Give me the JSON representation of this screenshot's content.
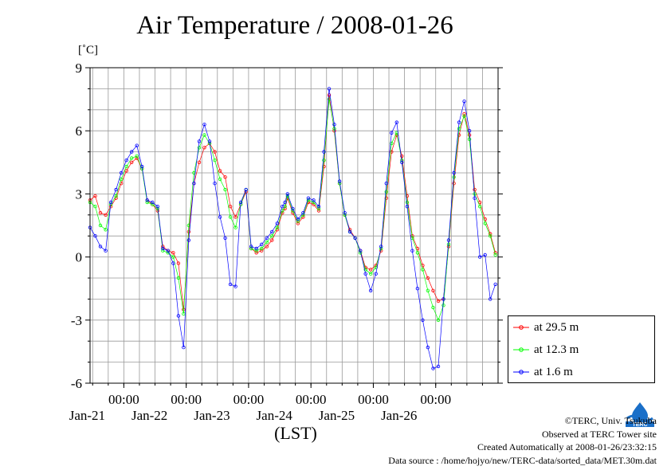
{
  "header": {
    "title": "Air Temperature / 2008-01-26",
    "unit": "[˚C]"
  },
  "footer": {
    "copyright": "©TERC, Univ. Tsukuba",
    "site": "Observed at TERC Tower site",
    "created": "Created Automatically at 2008-01-26/23:32:15",
    "source": "Data source : /home/hojyo/new/TERC-data/sorted_data/MET.30m.dat",
    "logo_text": "TERC"
  },
  "colors": {
    "series_29_5": "#ff0000",
    "series_12_3": "#00ff00",
    "series_1_6": "#0000ff",
    "grid": "#999999",
    "logo": "#1a6fc8"
  },
  "chart_data": {
    "type": "line",
    "title": "Air Temperature / 2008-01-26",
    "ylabel": "[˚C]",
    "xlabel": "(LST)",
    "ylim": [
      -6,
      9
    ],
    "yticks": [
      -6,
      -3,
      0,
      3,
      6,
      9
    ],
    "xlim": [
      "2008-01-20 11:00",
      "2008-01-27 00:00"
    ],
    "xticks": [
      {
        "time": "2008-01-21 00:00",
        "label": "00:00",
        "date": "Jan-21"
      },
      {
        "time": "2008-01-22 00:00",
        "label": "00:00",
        "date": "Jan-22"
      },
      {
        "time": "2008-01-23 00:00",
        "label": "00:00",
        "date": "Jan-23"
      },
      {
        "time": "2008-01-24 00:00",
        "label": "00:00",
        "date": "Jan-24"
      },
      {
        "time": "2008-01-25 00:00",
        "label": "00:00",
        "date": "Jan-25"
      },
      {
        "time": "2008-01-26 00:00",
        "label": "00:00",
        "date": "Jan-26"
      }
    ],
    "grid": true,
    "legend_position": "lower-right-outside",
    "series": [
      {
        "name": "at 29.5 m",
        "x": [
          "2008-01-20 11:00",
          "2008-01-20 13:00",
          "2008-01-20 15:00",
          "2008-01-20 17:00",
          "2008-01-20 19:00",
          "2008-01-20 21:00",
          "2008-01-20 23:00",
          "2008-01-21 01:00",
          "2008-01-21 03:00",
          "2008-01-21 05:00",
          "2008-01-21 07:00",
          "2008-01-21 09:00",
          "2008-01-21 11:00",
          "2008-01-21 13:00",
          "2008-01-21 15:00",
          "2008-01-21 17:00",
          "2008-01-21 19:00",
          "2008-01-21 21:00",
          "2008-01-21 23:00",
          "2008-01-22 01:00",
          "2008-01-22 03:00",
          "2008-01-22 05:00",
          "2008-01-22 07:00",
          "2008-01-22 09:00",
          "2008-01-22 11:00",
          "2008-01-22 13:00",
          "2008-01-22 15:00",
          "2008-01-22 17:00",
          "2008-01-22 19:00",
          "2008-01-22 21:00",
          "2008-01-22 23:00",
          "2008-01-23 01:00",
          "2008-01-23 03:00",
          "2008-01-23 05:00",
          "2008-01-23 07:00",
          "2008-01-23 09:00",
          "2008-01-23 11:00",
          "2008-01-23 13:00",
          "2008-01-23 14:00",
          "2008-01-23 15:00",
          "2008-01-23 17:00",
          "2008-01-23 19:00",
          "2008-01-23 21:00",
          "2008-01-23 23:00",
          "2008-01-24 01:00",
          "2008-01-24 03:00",
          "2008-01-24 05:00",
          "2008-01-24 07:00",
          "2008-01-24 09:00",
          "2008-01-24 11:00",
          "2008-01-24 13:00",
          "2008-01-24 15:00",
          "2008-01-24 17:00",
          "2008-01-24 19:00",
          "2008-01-24 21:00",
          "2008-01-24 23:00",
          "2008-01-25 01:00",
          "2008-01-25 03:00",
          "2008-01-25 05:00",
          "2008-01-25 07:00",
          "2008-01-25 09:00",
          "2008-01-25 11:00",
          "2008-01-25 13:00",
          "2008-01-25 15:00",
          "2008-01-25 17:00",
          "2008-01-25 19:00",
          "2008-01-25 21:00",
          "2008-01-25 23:00",
          "2008-01-26 01:00",
          "2008-01-26 03:00",
          "2008-01-26 05:00",
          "2008-01-26 07:00",
          "2008-01-26 09:00",
          "2008-01-26 11:00",
          "2008-01-26 13:00",
          "2008-01-26 15:00",
          "2008-01-26 17:00",
          "2008-01-26 19:00",
          "2008-01-26 21:00",
          "2008-01-26 23:00"
        ],
        "values": [
          2.7,
          2.9,
          2.1,
          2.0,
          2.4,
          2.8,
          3.5,
          4.1,
          4.5,
          4.7,
          4.2,
          2.7,
          2.5,
          2.2,
          0.5,
          0.3,
          0.2,
          -0.3,
          -2.5,
          1.2,
          3.5,
          4.5,
          5.2,
          5.4,
          5.0,
          4.1,
          3.8,
          2.4,
          1.9,
          2.5,
          3.1,
          0.4,
          0.2,
          0.3,
          0.5,
          0.8,
          1.3,
          2.1,
          2.3,
          2.8,
          2.1,
          1.6,
          1.9,
          2.6,
          2.5,
          2.2,
          4.3,
          7.7,
          6.0,
          3.5,
          2.0,
          1.3,
          0.9,
          0.3,
          -0.5,
          -0.6,
          -0.4,
          0.3,
          2.8,
          5.0,
          5.8,
          4.8,
          2.9,
          1.0,
          0.4,
          -0.4,
          -1.0,
          -1.6,
          -2.1,
          -2.0,
          0.5,
          3.5,
          5.8,
          6.8,
          5.8,
          3.2,
          2.6,
          1.8,
          1.1,
          0.2
        ]
      },
      {
        "name": "at 12.3 m",
        "x": [
          "2008-01-20 11:00",
          "2008-01-20 13:00",
          "2008-01-20 15:00",
          "2008-01-20 17:00",
          "2008-01-20 19:00",
          "2008-01-20 21:00",
          "2008-01-20 23:00",
          "2008-01-21 01:00",
          "2008-01-21 03:00",
          "2008-01-21 05:00",
          "2008-01-21 07:00",
          "2008-01-21 09:00",
          "2008-01-21 11:00",
          "2008-01-21 13:00",
          "2008-01-21 15:00",
          "2008-01-21 17:00",
          "2008-01-21 19:00",
          "2008-01-21 21:00",
          "2008-01-21 23:00",
          "2008-01-22 01:00",
          "2008-01-22 03:00",
          "2008-01-22 05:00",
          "2008-01-22 07:00",
          "2008-01-22 09:00",
          "2008-01-22 11:00",
          "2008-01-22 13:00",
          "2008-01-22 15:00",
          "2008-01-22 17:00",
          "2008-01-22 19:00",
          "2008-01-22 21:00",
          "2008-01-22 23:00",
          "2008-01-23 01:00",
          "2008-01-23 03:00",
          "2008-01-23 05:00",
          "2008-01-23 07:00",
          "2008-01-23 09:00",
          "2008-01-23 11:00",
          "2008-01-23 13:00",
          "2008-01-23 14:00",
          "2008-01-23 15:00",
          "2008-01-23 17:00",
          "2008-01-23 19:00",
          "2008-01-23 21:00",
          "2008-01-23 23:00",
          "2008-01-24 01:00",
          "2008-01-24 03:00",
          "2008-01-24 05:00",
          "2008-01-24 07:00",
          "2008-01-24 09:00",
          "2008-01-24 11:00",
          "2008-01-24 13:00",
          "2008-01-24 15:00",
          "2008-01-24 17:00",
          "2008-01-24 19:00",
          "2008-01-24 21:00",
          "2008-01-24 23:00",
          "2008-01-25 01:00",
          "2008-01-25 03:00",
          "2008-01-25 05:00",
          "2008-01-25 07:00",
          "2008-01-25 09:00",
          "2008-01-25 11:00",
          "2008-01-25 13:00",
          "2008-01-25 15:00",
          "2008-01-25 17:00",
          "2008-01-25 19:00",
          "2008-01-25 21:00",
          "2008-01-25 23:00",
          "2008-01-26 01:00",
          "2008-01-26 03:00",
          "2008-01-26 05:00",
          "2008-01-26 07:00",
          "2008-01-26 09:00",
          "2008-01-26 11:00",
          "2008-01-26 13:00",
          "2008-01-26 15:00",
          "2008-01-26 17:00",
          "2008-01-26 19:00",
          "2008-01-26 21:00",
          "2008-01-26 23:00"
        ],
        "values": [
          2.6,
          2.4,
          1.5,
          1.3,
          2.5,
          2.9,
          3.7,
          4.3,
          4.7,
          4.8,
          4.2,
          2.6,
          2.5,
          2.3,
          0.3,
          0.2,
          0.0,
          -1.0,
          -2.7,
          1.5,
          4.0,
          5.2,
          5.8,
          5.4,
          4.6,
          3.7,
          3.2,
          1.9,
          1.4,
          2.5,
          3.2,
          0.4,
          0.3,
          0.4,
          0.7,
          1.0,
          1.4,
          2.2,
          2.4,
          2.9,
          2.2,
          1.7,
          2.0,
          2.7,
          2.6,
          2.3,
          4.6,
          7.5,
          6.1,
          3.5,
          2.0,
          1.2,
          0.9,
          0.2,
          -0.6,
          -0.8,
          -0.5,
          0.4,
          3.1,
          5.4,
          5.9,
          4.6,
          2.6,
          0.9,
          0.2,
          -0.6,
          -1.6,
          -2.4,
          -3.0,
          -2.3,
          0.6,
          3.8,
          6.1,
          6.7,
          5.6,
          3.0,
          2.4,
          1.6,
          1.0,
          0.1
        ]
      },
      {
        "name": "at 1.6 m",
        "x": [
          "2008-01-20 11:00",
          "2008-01-20 13:00",
          "2008-01-20 15:00",
          "2008-01-20 17:00",
          "2008-01-20 19:00",
          "2008-01-20 21:00",
          "2008-01-20 23:00",
          "2008-01-21 01:00",
          "2008-01-21 03:00",
          "2008-01-21 05:00",
          "2008-01-21 07:00",
          "2008-01-21 09:00",
          "2008-01-21 11:00",
          "2008-01-21 13:00",
          "2008-01-21 15:00",
          "2008-01-21 17:00",
          "2008-01-21 19:00",
          "2008-01-21 21:00",
          "2008-01-21 23:00",
          "2008-01-22 01:00",
          "2008-01-22 03:00",
          "2008-01-22 05:00",
          "2008-01-22 07:00",
          "2008-01-22 09:00",
          "2008-01-22 11:00",
          "2008-01-22 13:00",
          "2008-01-22 15:00",
          "2008-01-22 17:00",
          "2008-01-22 19:00",
          "2008-01-22 21:00",
          "2008-01-22 23:00",
          "2008-01-23 01:00",
          "2008-01-23 03:00",
          "2008-01-23 05:00",
          "2008-01-23 07:00",
          "2008-01-23 09:00",
          "2008-01-23 11:00",
          "2008-01-23 13:00",
          "2008-01-23 14:00",
          "2008-01-23 15:00",
          "2008-01-23 17:00",
          "2008-01-23 19:00",
          "2008-01-23 21:00",
          "2008-01-23 23:00",
          "2008-01-24 01:00",
          "2008-01-24 03:00",
          "2008-01-24 05:00",
          "2008-01-24 07:00",
          "2008-01-24 09:00",
          "2008-01-24 11:00",
          "2008-01-24 13:00",
          "2008-01-24 15:00",
          "2008-01-24 17:00",
          "2008-01-24 19:00",
          "2008-01-24 21:00",
          "2008-01-24 23:00",
          "2008-01-25 01:00",
          "2008-01-25 03:00",
          "2008-01-25 05:00",
          "2008-01-25 07:00",
          "2008-01-25 09:00",
          "2008-01-25 11:00",
          "2008-01-25 13:00",
          "2008-01-25 15:00",
          "2008-01-25 17:00",
          "2008-01-25 19:00",
          "2008-01-25 21:00",
          "2008-01-25 23:00",
          "2008-01-26 01:00",
          "2008-01-26 03:00",
          "2008-01-26 05:00",
          "2008-01-26 07:00",
          "2008-01-26 09:00",
          "2008-01-26 11:00",
          "2008-01-26 13:00",
          "2008-01-26 15:00",
          "2008-01-26 17:00",
          "2008-01-26 19:00",
          "2008-01-26 21:00",
          "2008-01-26 23:00"
        ],
        "values": [
          1.4,
          1.0,
          0.5,
          0.3,
          2.6,
          3.2,
          4.0,
          4.6,
          5.0,
          5.3,
          4.3,
          2.7,
          2.6,
          2.4,
          0.4,
          0.3,
          -0.3,
          -2.8,
          -4.3,
          0.8,
          3.5,
          5.5,
          6.3,
          5.5,
          3.5,
          1.9,
          0.9,
          -1.3,
          -1.4,
          2.6,
          3.2,
          0.5,
          0.4,
          0.6,
          0.9,
          1.2,
          1.6,
          2.4,
          2.6,
          3.0,
          2.3,
          1.8,
          2.1,
          2.8,
          2.7,
          2.4,
          5.0,
          8.0,
          6.3,
          3.6,
          2.1,
          1.2,
          0.9,
          0.3,
          -0.8,
          -1.6,
          -0.8,
          0.5,
          3.5,
          5.9,
          6.4,
          4.5,
          2.4,
          0.3,
          -1.5,
          -3.0,
          -4.3,
          -5.3,
          -5.2,
          -2.0,
          0.8,
          4.0,
          6.4,
          7.4,
          6.0,
          2.8,
          0.0,
          0.1,
          -2.0,
          -1.3
        ]
      }
    ]
  }
}
